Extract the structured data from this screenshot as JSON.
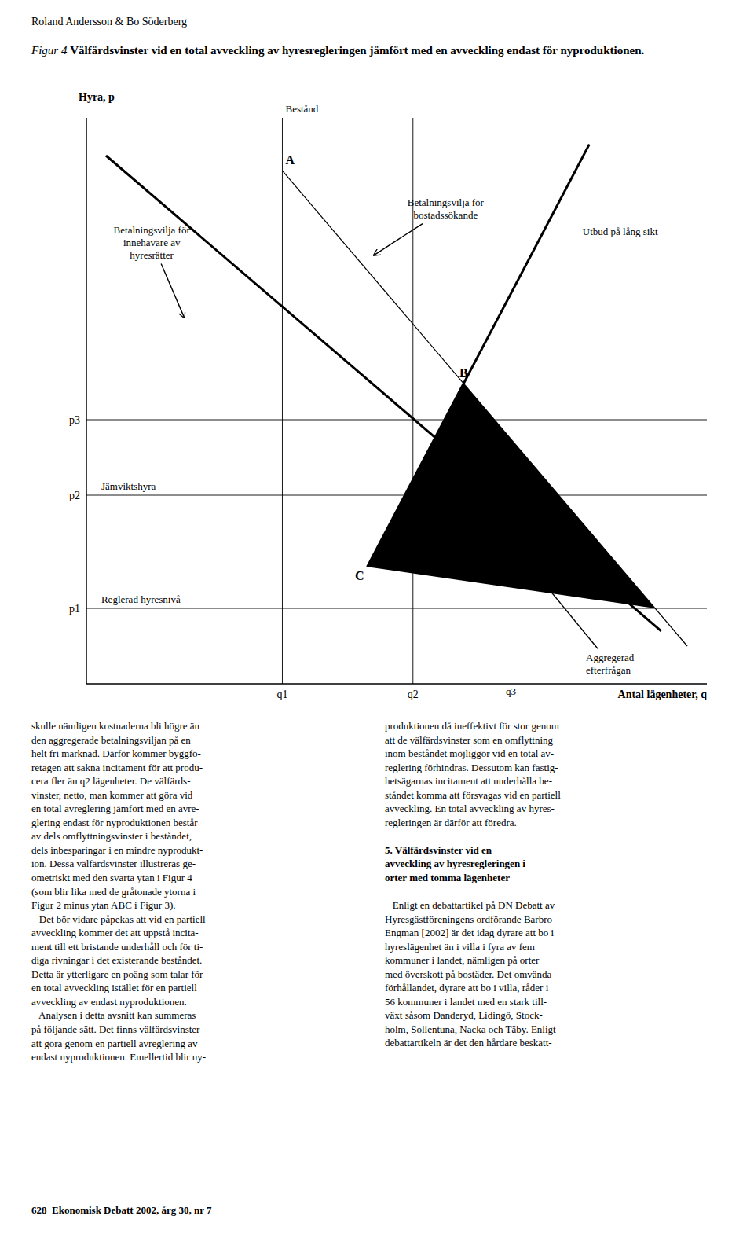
{
  "chart_data": {
    "type": "line",
    "title": "Figur 4",
    "subtitle": "Välfärdsvinster vid en total avveckling av hyresregleringen jämfört med en avveckling endast för nyproduktionen.",
    "xlabel": "Antal lägenheter, q",
    "ylabel": "Hyra, p",
    "xlim": [
      0.0,
      9.5
    ],
    "ylim": [
      0.0,
      7.5
    ],
    "xticks": [
      {
        "value": 3.0,
        "label": "q1"
      },
      {
        "value": 5.0,
        "label": "q2"
      }
    ],
    "yticks": [
      {
        "value": 1.0,
        "label": "p1"
      },
      {
        "value": 2.5,
        "label": "p2"
      },
      {
        "value": 3.5,
        "label": "p3"
      }
    ],
    "grid": true,
    "series": [
      {
        "type": "polygon",
        "x": [
          4.3,
          5.775312,
          8.707937
        ],
        "values": [
          1.55,
          3.979926,
          1.0
        ],
        "color": "#000000"
      },
      {
        "x": [
          0.3,
          8.8
        ],
        "values": [
          7.0,
          0.7
        ],
        "color": "#000000",
        "line_style": "thick"
      },
      {
        "x": [
          3.0,
          9.2
        ],
        "values": [
          6.8,
          0.5
        ],
        "color": "#000000",
        "line_style": "thin"
      },
      {
        "x": [
          4.3,
          7.7
        ],
        "values": [
          1.55,
          7.15
        ],
        "color": "#000000",
        "line_style": "thick"
      }
    ],
    "points": [
      {
        "label": "A",
        "x": 3.0,
        "y": 6.8,
        "anchor": "above-right"
      },
      {
        "label": "B",
        "x": 5.775312,
        "y": 3.979926,
        "anchor": "above"
      },
      {
        "label": "C",
        "x": 4.3,
        "y": 1.55,
        "anchor": "below-left"
      }
    ],
    "annotations": [
      {
        "text": "Betalningsvilja för\ninnehavare av\nhyresrätter",
        "x": 1.0,
        "y": 5.85,
        "anchor": "center",
        "arrow_to": [
          1.5,
          4.85
        ]
      },
      {
        "text": "Betalningsvilja för\nbostadssökande",
        "x": 5.5,
        "y": 6.3,
        "anchor": "center",
        "arrow_to": [
          4.4,
          5.679032
        ]
      },
      {
        "text": "Utbud på lång sikt",
        "x": 7.55,
        "y": 6.0,
        "anchor": "right"
      },
      {
        "text": "Jämviktshyra",
        "x": 0.18,
        "y": 2.5,
        "anchor": "above-right"
      },
      {
        "text": "Reglerad hyresnivå",
        "x": 0.18,
        "y": 1.0,
        "anchor": "above-right"
      },
      {
        "text": "Aggregerad\nefterfrågan",
        "x": 7.6,
        "y": 0.45,
        "anchor": "below-right",
        "arrow_to": [
          6.8,
          1.55
        ]
      },
      {
        "text": "Bestånd",
        "x": 3.0,
        "y": 7.5,
        "anchor": "above-right"
      },
      {
        "text": "q3",
        "x": 6.5,
        "y": 0.0,
        "anchor": "below"
      }
    ]
  },
  "page": {
    "header": "Roland Andersson & Bo Söderberg",
    "footer": "628  Ekonomisk Debatt 2002, årg 30, nr 7",
    "left_column": [
      "skulle nämligen kostnaderna bli högre än\nden aggregerade betalningsviljan på en\nhelt fri marknad. Därför kommer byggfö-\nretagen att sakna incitament för att produ-\ncera fler än q2 lägenheter. De välfärds-\nvinster, netto, man kommer att göra vid\nen total avreglering jämfört med en avre-\nglering endast för nyproduktionen består\nav dels omflyttningsvinster i beståndet,\ndels inbesparingar i en mindre nyprodukt-\nion. Dessa välfärdsvinster illustreras ge-\nometriskt med den svarta ytan i Figur 4\n(som blir lika med de gråtonade ytorna i\nFigur 2 minus ytan ABC i Figur 3).",
      "   Det bör vidare påpekas att vid en partiell\navveckling kommer det att uppstå incita-\nment till ett bristande underhåll och för ti-\ndiga rivningar i det existerande beståndet.\nDetta är ytterligare en poäng som talar för\nen total avveckling istället för en partiell\navveckling av endast nyproduktionen.",
      "   Analysen i detta avsnitt kan summeras\npå följande sätt. Det finns välfärdsvinster\natt göra genom en partiell avreglering av\nendast nyproduktionen. Emellertid blir ny-"
    ],
    "right_column_top": "produktionen då ineffektivt för stor genom\natt de välfärdsvinster som en omflyttning\ninom beståndet möjliggör vid en total av-\nreglering förhindras. Dessutom kan fastig-\nhetsägarnas incitament att underhålla be-\nståndet komma att försvagas vid en partiell\navveckling. En total avveckling av hyres-\nregleringen är därför att föredra.",
    "section_title": "5. Välfärdsvinster vid en\navveckling av hyresregleringen i\norter med tomma lägenheter",
    "right_column_bottom": "   Enligt en debattartikel på DN Debatt av\nHyresgästföreningens ordförande Barbro\nEngman [2002] är det idag dyrare att bo i\nhyreslägenhet än i villa i fyra av fem\nkommuner i landet, nämligen på orter\nmed överskott på bostäder. Det omvända\nförhållandet, dyrare att bo i villa, råder i\n56 kommuner i landet med en stark till-\nväxt såsom Danderyd, Lidingö, Stock-\nholm, Sollentuna, Nacka och Täby. Enligt\ndebattartikeln är det den hårdare beskatt-"
  }
}
